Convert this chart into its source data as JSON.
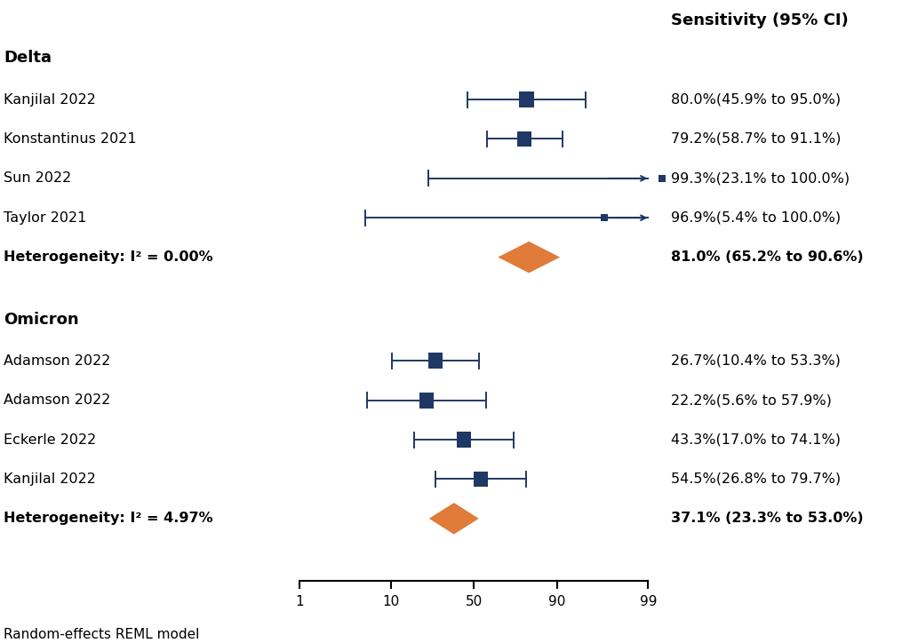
{
  "title_right": "Sensitivity (95% CI)",
  "bg_color": "#ffffff",
  "dark_blue": "#1f3864",
  "orange": "#e07b39",
  "axis_ticks": [
    1,
    10,
    50,
    90,
    99
  ],
  "footer": "Random-effects REML model",
  "groups": [
    {
      "name": "Delta",
      "studies": [
        {
          "label": "Kanjilal 2022",
          "est": 80.0,
          "lo": 45.9,
          "hi": 95.0,
          "ci_text": "80.0%(45.9% to 95.0%)",
          "arrow_hi": false
        },
        {
          "label": "Konstantinus 2021",
          "est": 79.2,
          "lo": 58.7,
          "hi": 91.1,
          "ci_text": "79.2%(58.7% to 91.1%)",
          "arrow_hi": false
        },
        {
          "label": "Sun 2022",
          "est": 99.3,
          "lo": 23.1,
          "hi": 100.0,
          "ci_text": "99.3%(23.1% to 100.0%)",
          "arrow_hi": true
        },
        {
          "label": "Taylor 2021",
          "est": 96.9,
          "lo": 5.4,
          "hi": 100.0,
          "ci_text": "96.9%(5.4% to 100.0%)",
          "arrow_hi": true
        }
      ],
      "pooled": {
        "est": 81.0,
        "lo": 65.2,
        "hi": 90.6,
        "ci_text": "81.0% (65.2% to 90.6%)",
        "het": "Heterogeneity: I² = 0.00%"
      }
    },
    {
      "name": "Omicron",
      "studies": [
        {
          "label": "Adamson 2022",
          "est": 26.7,
          "lo": 10.4,
          "hi": 53.3,
          "ci_text": "26.7%(10.4% to 53.3%)",
          "arrow_hi": false
        },
        {
          "label": "Adamson 2022",
          "est": 22.2,
          "lo": 5.6,
          "hi": 57.9,
          "ci_text": "22.2%(5.6% to 57.9%)",
          "arrow_hi": false
        },
        {
          "label": "Eckerle 2022",
          "est": 43.3,
          "lo": 17.0,
          "hi": 74.1,
          "ci_text": "43.3%(17.0% to 74.1%)",
          "arrow_hi": false
        },
        {
          "label": "Kanjilal 2022",
          "est": 54.5,
          "lo": 26.8,
          "hi": 79.7,
          "ci_text": "54.5%(26.8% to 79.7%)",
          "arrow_hi": false
        }
      ],
      "pooled": {
        "est": 37.1,
        "lo": 23.3,
        "hi": 53.0,
        "ci_text": "37.1% (23.3% to 53.0%)",
        "het": "Heterogeneity: I² = 4.97%"
      }
    }
  ],
  "label_fontsize": 11.5,
  "ci_fontsize": 11.5,
  "header_fontsize": 13,
  "axis_fontsize": 11,
  "footer_fontsize": 11
}
